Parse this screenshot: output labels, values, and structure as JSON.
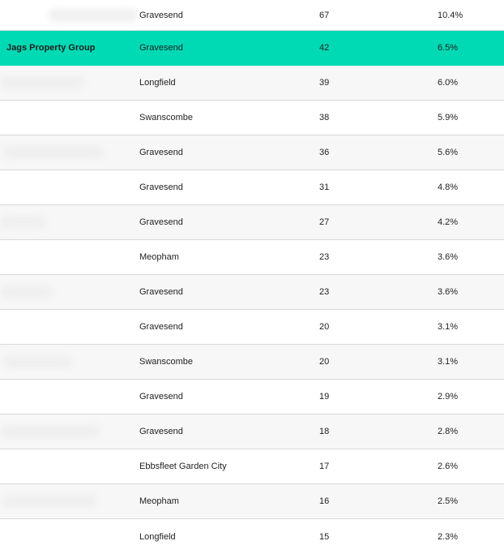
{
  "table": {
    "highlight_color": "#00dab4",
    "rows": [
      {
        "agent": "",
        "location": "Gravesend",
        "count": "67",
        "share": "10.4%"
      },
      {
        "agent": "Jags Property Group",
        "location": "Gravesend",
        "count": "42",
        "share": "6.5%"
      },
      {
        "agent": "",
        "location": "Longfield",
        "count": "39",
        "share": "6.0%"
      },
      {
        "agent": "",
        "location": "Swanscombe",
        "count": "38",
        "share": "5.9%"
      },
      {
        "agent": "",
        "location": "Gravesend",
        "count": "36",
        "share": "5.6%"
      },
      {
        "agent": "",
        "location": "Gravesend",
        "count": "31",
        "share": "4.8%"
      },
      {
        "agent": "",
        "location": "Gravesend",
        "count": "27",
        "share": "4.2%"
      },
      {
        "agent": "",
        "location": "Meopham",
        "count": "23",
        "share": "3.6%"
      },
      {
        "agent": "",
        "location": "Gravesend",
        "count": "23",
        "share": "3.6%"
      },
      {
        "agent": "",
        "location": "Gravesend",
        "count": "20",
        "share": "3.1%"
      },
      {
        "agent": "",
        "location": "Swanscombe",
        "count": "20",
        "share": "3.1%"
      },
      {
        "agent": "",
        "location": "Gravesend",
        "count": "19",
        "share": "2.9%"
      },
      {
        "agent": "",
        "location": "Gravesend",
        "count": "18",
        "share": "2.8%"
      },
      {
        "agent": "",
        "location": "Ebbsfleet Garden City",
        "count": "17",
        "share": "2.6%"
      },
      {
        "agent": "",
        "location": "Meopham",
        "count": "16",
        "share": "2.5%"
      },
      {
        "agent": "",
        "location": "Longfield",
        "count": "15",
        "share": "2.3%"
      }
    ]
  }
}
